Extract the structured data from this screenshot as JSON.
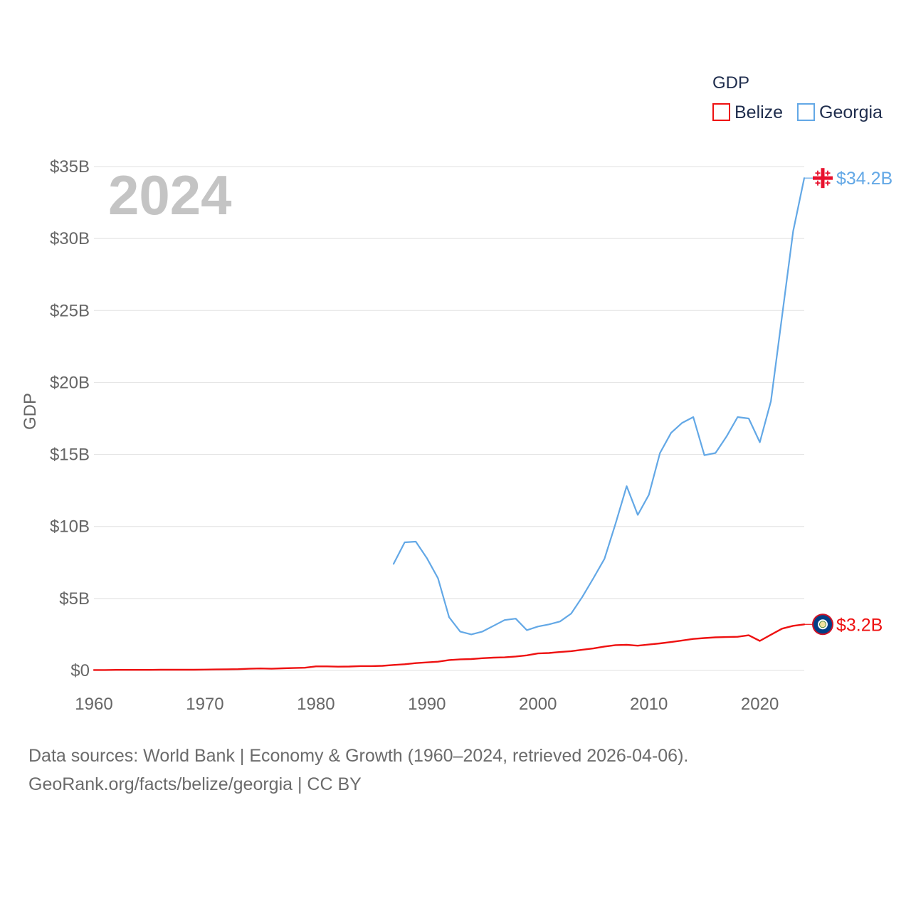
{
  "chart_data": {
    "type": "line",
    "title": "2024",
    "ylabel": "GDP",
    "xlabel": "",
    "xlim": [
      1960,
      2024
    ],
    "ylim": [
      0,
      35
    ],
    "x_ticks": [
      1960,
      1970,
      1980,
      1990,
      2000,
      2010,
      2020
    ],
    "x_tick_labels": [
      "1960",
      "1970",
      "1980",
      "1990",
      "2000",
      "2010",
      "2020"
    ],
    "y_ticks": [
      0,
      5,
      10,
      15,
      20,
      25,
      30,
      35
    ],
    "y_tick_labels": [
      "$0",
      "$5B",
      "$10B",
      "$15B",
      "$20B",
      "$25B",
      "$30B",
      "$35B"
    ],
    "legend": {
      "title": "GDP",
      "placement": "top-right"
    },
    "grid": true,
    "series": [
      {
        "name": "Belize",
        "color": "#ee1111",
        "end_label": "$3.2B",
        "flag": "belize-flag",
        "x": [
          1960,
          1961,
          1962,
          1963,
          1964,
          1965,
          1966,
          1967,
          1968,
          1969,
          1970,
          1971,
          1972,
          1973,
          1974,
          1975,
          1976,
          1977,
          1978,
          1979,
          1980,
          1981,
          1982,
          1983,
          1984,
          1985,
          1986,
          1987,
          1988,
          1989,
          1990,
          1991,
          1992,
          1993,
          1994,
          1995,
          1996,
          1997,
          1998,
          1999,
          2000,
          2001,
          2002,
          2003,
          2004,
          2005,
          2006,
          2007,
          2008,
          2009,
          2010,
          2011,
          2012,
          2013,
          2014,
          2015,
          2016,
          2017,
          2018,
          2019,
          2020,
          2021,
          2022,
          2023,
          2024
        ],
        "values": [
          0.03,
          0.03,
          0.04,
          0.04,
          0.04,
          0.04,
          0.05,
          0.05,
          0.05,
          0.05,
          0.06,
          0.07,
          0.08,
          0.09,
          0.12,
          0.14,
          0.12,
          0.15,
          0.17,
          0.19,
          0.28,
          0.28,
          0.26,
          0.27,
          0.3,
          0.3,
          0.32,
          0.38,
          0.43,
          0.51,
          0.56,
          0.61,
          0.72,
          0.77,
          0.79,
          0.85,
          0.89,
          0.91,
          0.97,
          1.05,
          1.18,
          1.21,
          1.28,
          1.34,
          1.44,
          1.53,
          1.66,
          1.76,
          1.78,
          1.72,
          1.8,
          1.88,
          1.97,
          2.08,
          2.19,
          2.25,
          2.3,
          2.32,
          2.34,
          2.44,
          2.05,
          2.48,
          2.9,
          3.1,
          3.2
        ]
      },
      {
        "name": "Georgia",
        "color": "#63a8e6",
        "end_label": "$34.2B",
        "flag": "georgia-flag",
        "x": [
          1987,
          1988,
          1989,
          1990,
          1991,
          1992,
          1993,
          1994,
          1995,
          1996,
          1997,
          1998,
          1999,
          2000,
          2001,
          2002,
          2003,
          2004,
          2005,
          2006,
          2007,
          2008,
          2009,
          2010,
          2011,
          2012,
          2013,
          2014,
          2015,
          2016,
          2017,
          2018,
          2019,
          2020,
          2021,
          2022,
          2023,
          2024
        ],
        "values": [
          7.4,
          8.9,
          8.95,
          7.8,
          6.4,
          3.7,
          2.7,
          2.5,
          2.7,
          3.1,
          3.5,
          3.6,
          2.8,
          3.05,
          3.2,
          3.4,
          3.95,
          5.1,
          6.4,
          7.75,
          10.2,
          12.8,
          10.8,
          12.2,
          15.1,
          16.5,
          17.2,
          17.6,
          14.95,
          15.1,
          16.25,
          17.6,
          17.5,
          15.85,
          18.7,
          24.6,
          30.5,
          34.2
        ]
      }
    ]
  },
  "footer": {
    "line1": "Data sources: World Bank | Economy & Growth (1960–2024, retrieved 2026-04-06).",
    "line2": "GeoRank.org/facts/belize/georgia | CC BY"
  }
}
